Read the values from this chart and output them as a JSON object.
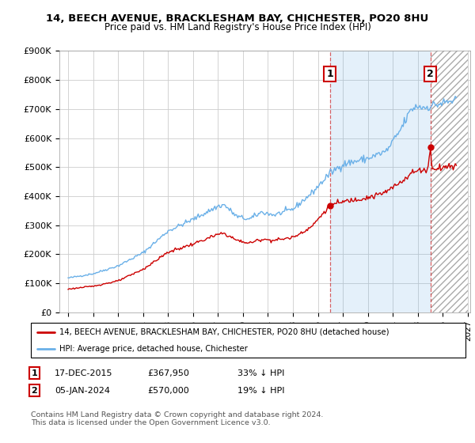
{
  "title": "14, BEECH AVENUE, BRACKLESHAM BAY, CHICHESTER, PO20 8HU",
  "subtitle": "Price paid vs. HM Land Registry's House Price Index (HPI)",
  "ylabel_ticks": [
    "£0",
    "£100K",
    "£200K",
    "£300K",
    "£400K",
    "£500K",
    "£600K",
    "£700K",
    "£800K",
    "£900K"
  ],
  "ytick_values": [
    0,
    100000,
    200000,
    300000,
    400000,
    500000,
    600000,
    700000,
    800000,
    900000
  ],
  "hpi_color": "#6ab0e8",
  "price_color": "#cc0000",
  "sale1_year": 2015.958,
  "sale1_price": 367950,
  "sale2_year": 2024.014,
  "sale2_price": 570000,
  "legend_line1": "14, BEECH AVENUE, BRACKLESHAM BAY, CHICHESTER, PO20 8HU (detached house)",
  "legend_line2": "HPI: Average price, detached house, Chichester",
  "table_row1": [
    "1",
    "17-DEC-2015",
    "£367,950",
    "33% ↓ HPI"
  ],
  "table_row2": [
    "2",
    "05-JAN-2024",
    "£570,000",
    "19% ↓ HPI"
  ],
  "footer": "Contains HM Land Registry data © Crown copyright and database right 2024.\nThis data is licensed under the Open Government Licence v3.0.",
  "bg_color": "#ffffff",
  "grid_color": "#cccccc",
  "shade_color": "#ddeeff"
}
